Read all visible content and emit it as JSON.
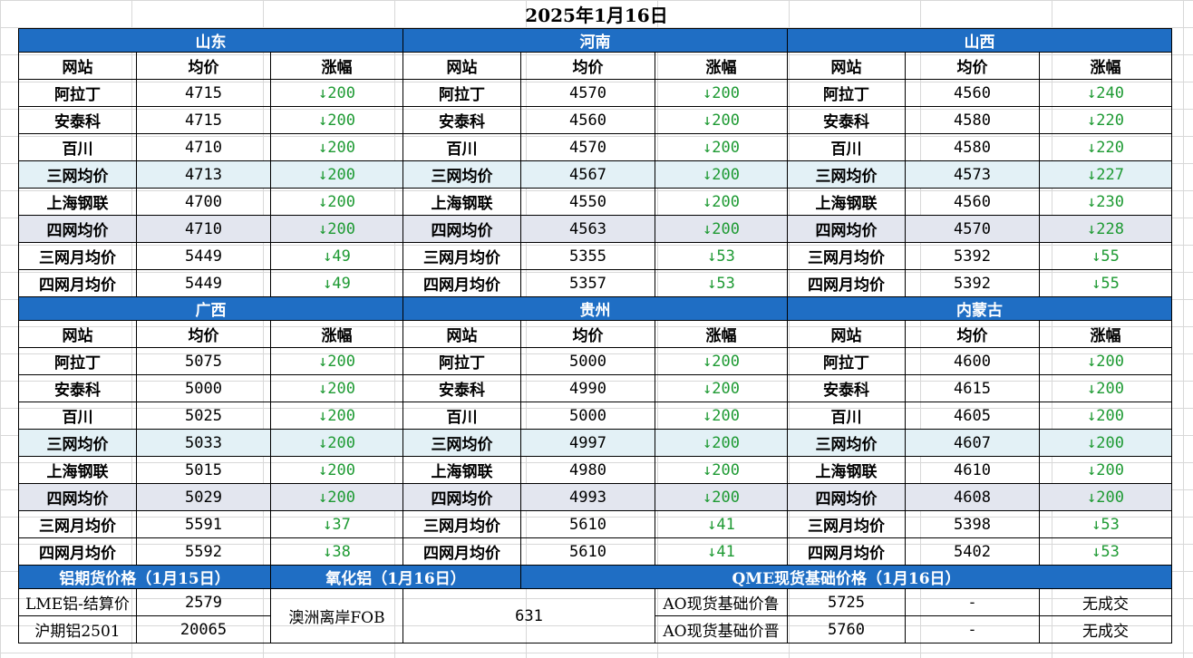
{
  "title": "2025年1月16日",
  "headers": {
    "site": "网站",
    "avg": "均价",
    "change": "涨幅"
  },
  "arrow": "↓",
  "row_labels": [
    "阿拉丁",
    "安泰科",
    "百川",
    "三网均价",
    "上海钢联",
    "四网均价",
    "三网月均价",
    "四网月均价"
  ],
  "regions": [
    {
      "name": "山东",
      "prices": [
        "4715",
        "4715",
        "4710",
        "4713",
        "4700",
        "4710",
        "5449",
        "5449"
      ],
      "changes": [
        "↓200",
        "↓200",
        "↓200",
        "↓200",
        "↓200",
        "↓200",
        "↓49",
        "↓49"
      ]
    },
    {
      "name": "河南",
      "prices": [
        "4570",
        "4560",
        "4570",
        "4567",
        "4550",
        "4563",
        "5355",
        "5357"
      ],
      "changes": [
        "↓200",
        "↓200",
        "↓200",
        "↓200",
        "↓200",
        "↓200",
        "↓53",
        "↓53"
      ]
    },
    {
      "name": "山西",
      "prices": [
        "4560",
        "4580",
        "4580",
        "4573",
        "4560",
        "4570",
        "5392",
        "5392"
      ],
      "changes": [
        "↓240",
        "↓220",
        "↓220",
        "↓227",
        "↓230",
        "↓228",
        "↓55",
        "↓55"
      ]
    },
    {
      "name": "广西",
      "prices": [
        "5075",
        "5000",
        "5025",
        "5033",
        "5015",
        "5029",
        "5591",
        "5592"
      ],
      "changes": [
        "↓200",
        "↓200",
        "↓200",
        "↓200",
        "↓200",
        "↓200",
        "↓37",
        "↓38"
      ]
    },
    {
      "name": "贵州",
      "prices": [
        "5000",
        "4990",
        "5000",
        "4997",
        "4980",
        "4993",
        "5610",
        "5610"
      ],
      "changes": [
        "↓200",
        "↓200",
        "↓200",
        "↓200",
        "↓200",
        "↓200",
        "↓41",
        "↓41"
      ]
    },
    {
      "name": "内蒙古",
      "prices": [
        "4600",
        "4615",
        "4605",
        "4607",
        "4610",
        "4608",
        "5398",
        "5402"
      ],
      "changes": [
        "↓200",
        "↓200",
        "↓200",
        "↓200",
        "↓200",
        "↓200",
        "↓53",
        "↓53"
      ]
    }
  ],
  "bottom": {
    "futures_title": "铝期货价格（1月15日）",
    "alumina_title": "氧化铝（1月16日）",
    "qme_title": "QME现货基础价格（1月16日）",
    "lme_label": "LME铝-结算价",
    "lme_value": "2579",
    "shfe_label": "沪期铝2501",
    "shfe_value": "20065",
    "alumina_label": "澳洲离岸FOB",
    "alumina_value": "631",
    "qme_rows": [
      {
        "label": "AO现货基础价鲁",
        "value": "5725",
        "change": "-",
        "note": "无成交"
      },
      {
        "label": "AO现货基础价晋",
        "value": "5760",
        "change": "-",
        "note": "无成交"
      }
    ]
  }
}
